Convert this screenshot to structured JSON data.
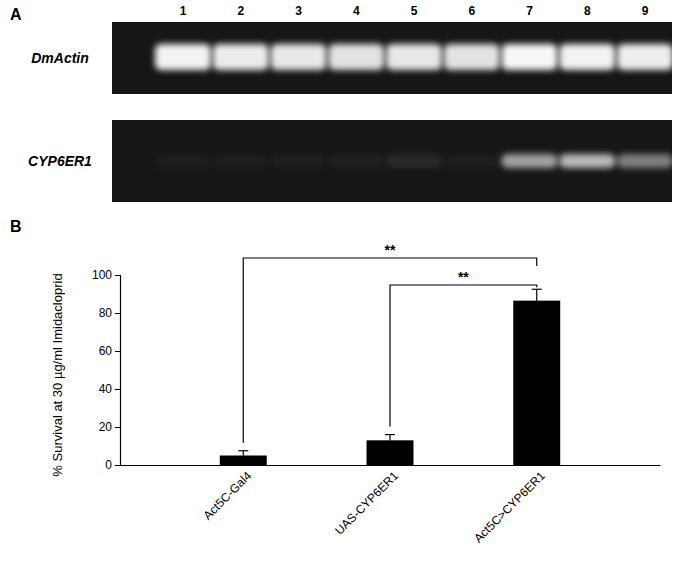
{
  "panel_labels": [
    "A",
    "B"
  ],
  "gel": {
    "lanes": [
      1,
      2,
      3,
      4,
      5,
      6,
      7,
      8,
      9
    ],
    "rows": [
      {
        "label": "DmActin",
        "intensities": [
          0.95,
          0.92,
          0.9,
          0.88,
          0.9,
          0.88,
          0.97,
          0.95,
          0.93
        ]
      },
      {
        "label": "CYP6ER1",
        "intensities": [
          0.03,
          0.03,
          0.03,
          0.04,
          0.08,
          0.03,
          0.6,
          0.7,
          0.45
        ]
      }
    ]
  },
  "chart_data": {
    "type": "bar",
    "y_label": "% Survival at 30 µg/ml Imidacloprid",
    "categories": [
      "Act5C-Gal4",
      "UAS-CYP6ER1",
      "Act5C>CYP6ER1"
    ],
    "values": [
      5,
      13,
      86.5
    ],
    "errors": [
      2.5,
      3,
      6
    ],
    "color": "#000000",
    "ylim": [
      0,
      100
    ],
    "yticks": [
      0,
      20,
      40,
      60,
      80,
      100
    ],
    "annotations": [
      {
        "text": "**",
        "from": 0,
        "to": 2
      },
      {
        "text": "**",
        "from": 1,
        "to": 2
      }
    ]
  }
}
